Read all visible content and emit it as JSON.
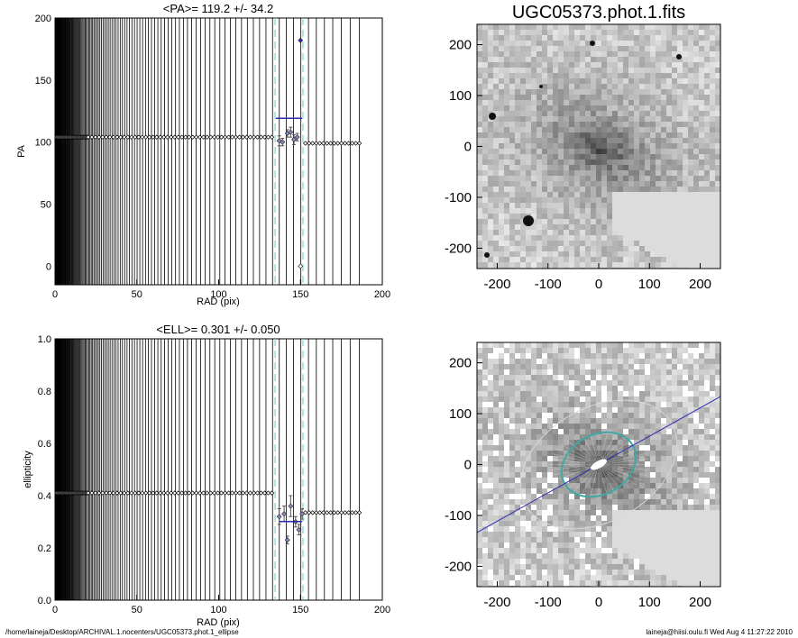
{
  "chart_data": [
    {
      "type": "scatter",
      "title": "<PA>= 119.2 +/-  34.2",
      "xlabel": "RAD (pix)",
      "ylabel": "PA",
      "xlim": [
        0,
        200
      ],
      "ylim": [
        -15,
        200
      ],
      "xticks": [
        "0",
        "50",
        "100",
        "150",
        "200"
      ],
      "yticks": [
        "0",
        "50",
        "100",
        "150",
        "200"
      ],
      "grid": false,
      "mean_line": {
        "value": 119.2,
        "x_range": [
          135,
          151
        ],
        "color": "#2b2bb0"
      },
      "fit_range_dashed": [
        134.5,
        151.5
      ],
      "series": [
        {
          "values_flat_x_from": 0,
          "values_flat_x_to": 134,
          "y": 104,
          "marker": "diamond-open"
        },
        {
          "values_flat_x_from": 153,
          "values_flat_x_to": 187,
          "y": 99,
          "marker": "diamond-open"
        }
      ],
      "points_with_error": [
        {
          "x": 137,
          "y": 101,
          "err": 4
        },
        {
          "x": 139,
          "y": 100,
          "err": 3
        },
        {
          "x": 142,
          "y": 107,
          "err": 3
        },
        {
          "x": 144,
          "y": 108,
          "err": 4
        },
        {
          "x": 146,
          "y": 102,
          "err": 4
        },
        {
          "x": 148,
          "y": 104,
          "err": 3
        }
      ],
      "outliers": [
        {
          "x": 150,
          "y": 182,
          "color": "#2b2bb0"
        },
        {
          "x": 150,
          "y": 0,
          "color": "#000000"
        }
      ]
    },
    {
      "type": "scatter",
      "title": "<ELL>= 0.301 +/-  0.050",
      "xlabel": "RAD (pix)",
      "ylabel": "ellipticity",
      "xlim": [
        0,
        200
      ],
      "ylim": [
        0,
        1
      ],
      "xticks": [
        "0",
        "50",
        "100",
        "150",
        "200"
      ],
      "yticks": [
        "0.0",
        "0.2",
        "0.4",
        "0.6",
        "0.8",
        "1.0"
      ],
      "grid": false,
      "mean_line": {
        "value": 0.301,
        "x_range": [
          137,
          151
        ],
        "color": "#2b2bb0"
      },
      "fit_range_dashed": [
        134.5,
        151.5
      ],
      "series": [
        {
          "values_flat_x_from": 0,
          "values_flat_x_to": 133,
          "y": 0.41,
          "marker": "diamond-open"
        },
        {
          "values_flat_x_from": 153,
          "values_flat_x_to": 187,
          "y": 0.335,
          "marker": "diamond-open"
        }
      ],
      "points_with_error": [
        {
          "x": 137,
          "y": 0.32,
          "err": 0.03
        },
        {
          "x": 140,
          "y": 0.33,
          "err": 0.03
        },
        {
          "x": 142,
          "y": 0.23,
          "err": 0.015
        },
        {
          "x": 144,
          "y": 0.36,
          "err": 0.04
        },
        {
          "x": 147,
          "y": 0.3,
          "err": 0.02
        },
        {
          "x": 149,
          "y": 0.27,
          "err": 0.02
        },
        {
          "x": 151,
          "y": 0.33,
          "err": 0.02
        }
      ]
    },
    {
      "type": "heatmap",
      "title": "UGC05373.phot.1.fits",
      "xlim": [
        -240,
        240
      ],
      "ylim": [
        -240,
        240
      ],
      "xticks": [
        "-200",
        "-100",
        "0",
        "100",
        "200"
      ],
      "yticks": [
        "-200",
        "-100",
        "0",
        "100",
        "200"
      ]
    },
    {
      "type": "heatmap",
      "title": "",
      "xlim": [
        -240,
        240
      ],
      "ylim": [
        -240,
        240
      ],
      "xticks": [
        "-200",
        "-100",
        "0",
        "100",
        "200"
      ],
      "yticks": [
        "-200",
        "-100",
        "0",
        "100",
        "200"
      ],
      "ellipse": {
        "a": 140,
        "ell": 0.301,
        "pa_deg": 119.2,
        "color": "#3fa9a6"
      },
      "outer_ellipse": {
        "a": 165,
        "ell": 0.32,
        "pa_deg": 119.2,
        "color": "#d8d8d8"
      },
      "major_axis_line": {
        "pa_deg": 119.2,
        "color": "#2b2bb0"
      }
    }
  ],
  "footer": {
    "left": "/home/laineja/Desktop/ARCHIVAL.1.nocenters/UGC05373.phot.1_ellipse",
    "right": "laineja@hiisi.oulu.fi  Wed Aug  4 11:27:22 2010"
  }
}
